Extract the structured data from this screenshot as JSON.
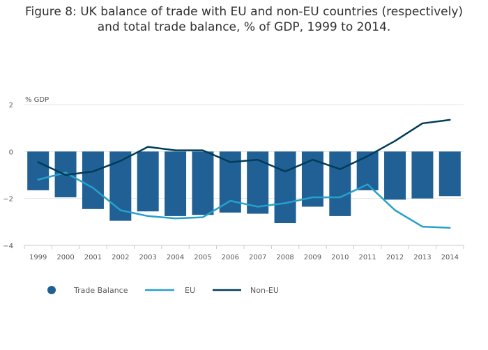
{
  "title_lines": [
    "Figure 8: UK balance of trade with EU and non-EU countries (respectively)",
    "and total trade balance, % of GDP, 1999 to 2014."
  ],
  "colors": {
    "trade_balance": "#206095",
    "eu": "#27a0cc",
    "non_eu": "#003c57",
    "grid": "#e5e5e5",
    "text": "#595959"
  },
  "chart_data": {
    "type": "bar",
    "title": "Figure 8: UK balance of trade with EU and non-EU countries (respectively) and total trade balance, % of GDP, 1999 to 2014.",
    "ylabel": "% GDP",
    "xlabel": "",
    "ylim": [
      -4,
      2
    ],
    "yticks": [
      2,
      0,
      -2,
      -4
    ],
    "ytick_labels": [
      "2",
      "0",
      "−2",
      "−4"
    ],
    "categories": [
      "1999",
      "2000",
      "2001",
      "2002",
      "2003",
      "2004",
      "2005",
      "2006",
      "2007",
      "2008",
      "2009",
      "2010",
      "2011",
      "2012",
      "2013",
      "2014"
    ],
    "series": [
      {
        "name": "Trade Balance",
        "kind": "bar",
        "values": [
          -1.65,
          -1.95,
          -2.45,
          -2.95,
          -2.55,
          -2.75,
          -2.7,
          -2.6,
          -2.65,
          -3.05,
          -2.35,
          -2.75,
          -1.65,
          -2.05,
          -2.0,
          -1.9
        ]
      },
      {
        "name": "EU",
        "kind": "line",
        "values": [
          -1.2,
          -0.9,
          -1.55,
          -2.5,
          -2.75,
          -2.85,
          -2.8,
          -2.1,
          -2.35,
          -2.2,
          -1.95,
          -1.95,
          -1.4,
          -2.5,
          -3.2,
          -3.25
        ]
      },
      {
        "name": "Non-EU",
        "kind": "line",
        "values": [
          -0.45,
          -1.0,
          -0.85,
          -0.4,
          0.2,
          0.05,
          0.05,
          -0.45,
          -0.35,
          -0.85,
          -0.35,
          -0.75,
          -0.2,
          0.45,
          1.2,
          1.35
        ]
      }
    ],
    "legend_position": "bottom-left"
  }
}
